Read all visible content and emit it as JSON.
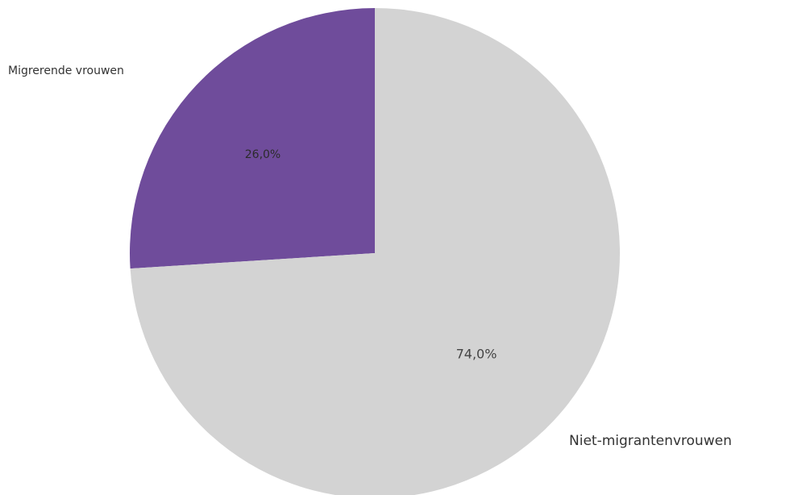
{
  "chart_data": {
    "type": "pie",
    "categories": [
      "Migrerende vrouwen",
      "Niet-migrantenvrouwen"
    ],
    "values": [
      26.0,
      74.0
    ],
    "value_labels": [
      "26,0%",
      "74,0%"
    ],
    "colors": [
      "#6f4c9b",
      "#d3d3d3"
    ],
    "title": "",
    "legend": "none"
  }
}
